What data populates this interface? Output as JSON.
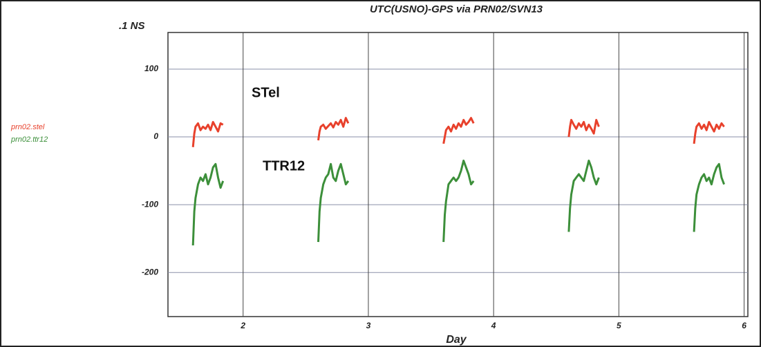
{
  "chart_data": {
    "type": "line",
    "title": "UTC(USNO)-GPS via PRN02/SVN13",
    "y_label": ".1 NS",
    "x_label": "Day",
    "annotations": [
      "STel",
      "TTR12"
    ],
    "x": [
      1.6,
      1.61,
      1.62,
      1.64,
      1.66,
      1.68,
      1.7,
      1.72,
      1.74,
      1.76,
      1.78,
      1.8,
      1.82,
      1.84,
      null,
      2.6,
      2.61,
      2.62,
      2.64,
      2.66,
      2.68,
      2.7,
      2.72,
      2.74,
      2.76,
      2.78,
      2.8,
      2.82,
      2.84,
      null,
      3.6,
      3.61,
      3.62,
      3.64,
      3.66,
      3.68,
      3.7,
      3.72,
      3.74,
      3.76,
      3.78,
      3.8,
      3.82,
      3.84,
      null,
      4.6,
      4.61,
      4.62,
      4.64,
      4.66,
      4.68,
      4.7,
      4.72,
      4.74,
      4.76,
      4.78,
      4.8,
      4.82,
      4.84,
      null,
      5.6,
      5.61,
      5.62,
      5.64,
      5.66,
      5.68,
      5.7,
      5.72,
      5.74,
      5.76,
      5.78,
      5.8,
      5.82,
      5.84
    ],
    "series": [
      {
        "name": "prn02.stel",
        "color": "#e8412c",
        "values": [
          -15,
          5,
          15,
          20,
          10,
          15,
          12,
          18,
          10,
          22,
          15,
          8,
          20,
          18,
          null,
          -5,
          8,
          15,
          18,
          12,
          16,
          20,
          14,
          22,
          18,
          25,
          15,
          28,
          20,
          null,
          -10,
          0,
          10,
          15,
          8,
          18,
          12,
          20,
          15,
          25,
          18,
          22,
          28,
          20,
          null,
          0,
          15,
          25,
          18,
          12,
          20,
          15,
          22,
          10,
          18,
          12,
          5,
          25,
          15,
          null,
          -10,
          5,
          15,
          20,
          12,
          18,
          10,
          22,
          15,
          8,
          18,
          12,
          20,
          15
        ]
      },
      {
        "name": "prn02.ttr12",
        "color": "#3c8f3a",
        "values": [
          -160,
          -110,
          -90,
          -70,
          -60,
          -65,
          -55,
          -70,
          -60,
          -45,
          -40,
          -60,
          -75,
          -65,
          null,
          -155,
          -110,
          -90,
          -70,
          -60,
          -55,
          -40,
          -60,
          -65,
          -50,
          -40,
          -55,
          -70,
          -65,
          null,
          -155,
          -115,
          -95,
          -70,
          -65,
          -60,
          -65,
          -60,
          -50,
          -35,
          -45,
          -55,
          -70,
          -65,
          null,
          -140,
          -105,
          -85,
          -65,
          -60,
          -55,
          -60,
          -65,
          -50,
          -35,
          -45,
          -60,
          -70,
          -60,
          null,
          -140,
          -105,
          -85,
          -70,
          -60,
          -55,
          -65,
          -60,
          -70,
          -55,
          -45,
          -40,
          -60,
          -70
        ]
      }
    ],
    "xlim": [
      1.4,
      6.03
    ],
    "xticks": [
      2,
      3,
      4,
      5,
      6
    ],
    "ylim": [
      -265,
      154
    ],
    "yticks": [
      100,
      0,
      -100,
      -200
    ],
    "grid": true
  }
}
